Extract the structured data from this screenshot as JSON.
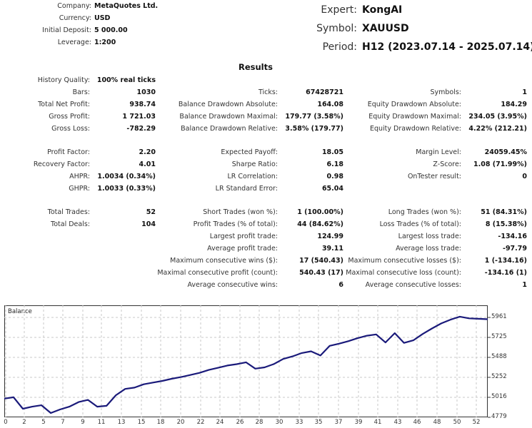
{
  "header_left": {
    "rows": [
      {
        "label": "Company:",
        "value": "MetaQuotes Ltd."
      },
      {
        "label": "Currency:",
        "value": "USD"
      },
      {
        "label": "Initial Deposit:",
        "value": "5 000.00"
      },
      {
        "label": "Leverage:",
        "value": "1:200"
      }
    ]
  },
  "header_right": {
    "rows": [
      {
        "label": "Expert:",
        "value": "KongAI"
      },
      {
        "label": "Symbol:",
        "value": "XAUUSD"
      },
      {
        "label": "Period:",
        "value": "H12 (2023.07.14 - 2025.07.14)"
      }
    ]
  },
  "results": {
    "title": "Results",
    "col1": [
      {
        "label": "History Quality:",
        "value": "100% real ticks"
      },
      {
        "label": "Bars:",
        "value": "1030"
      },
      {
        "label": "Total Net Profit:",
        "value": "938.74"
      },
      {
        "label": "Gross Profit:",
        "value": "1 721.03"
      },
      {
        "label": "Gross Loss:",
        "value": "-782.29"
      },
      {
        "label": "Profit Factor:",
        "value": "2.20"
      },
      {
        "label": "Recovery Factor:",
        "value": "4.01"
      },
      {
        "label": "AHPR:",
        "value": "1.0034 (0.34%)"
      },
      {
        "label": "GHPR:",
        "value": "1.0033 (0.33%)"
      },
      {
        "label": "Total Trades:",
        "value": "52"
      },
      {
        "label": "Total Deals:",
        "value": "104"
      }
    ],
    "col2": [
      {
        "label": "Ticks:",
        "value": "67428721"
      },
      {
        "label": "Balance Drawdown Absolute:",
        "value": "164.08"
      },
      {
        "label": "Balance Drawdown Maximal:",
        "value": "179.77 (3.58%)"
      },
      {
        "label": "Balance Drawdown Relative:",
        "value": "3.58% (179.77)"
      },
      {
        "label": "Expected Payoff:",
        "value": "18.05"
      },
      {
        "label": "Sharpe Ratio:",
        "value": "6.18"
      },
      {
        "label": "LR Correlation:",
        "value": "0.98"
      },
      {
        "label": "LR Standard Error:",
        "value": "65.04"
      },
      {
        "label": "Short Trades (won %):",
        "value": "1 (100.00%)"
      },
      {
        "label": "Profit Trades (% of total):",
        "value": "44 (84.62%)"
      },
      {
        "label": "Largest profit trade:",
        "value": "124.99"
      },
      {
        "label": "Average profit trade:",
        "value": "39.11"
      },
      {
        "label": "Maximum consecutive wins ($):",
        "value": "17 (540.43)"
      },
      {
        "label": "Maximal consecutive profit (count):",
        "value": "540.43 (17)"
      },
      {
        "label": "Average consecutive wins:",
        "value": "6"
      }
    ],
    "col3": [
      {
        "label": "Symbols:",
        "value": "1"
      },
      {
        "label": "Equity Drawdown Absolute:",
        "value": "184.29"
      },
      {
        "label": "Equity Drawdown Maximal:",
        "value": "234.05 (3.95%)"
      },
      {
        "label": "Equity Drawdown Relative:",
        "value": "4.22% (212.21)"
      },
      {
        "label": "Margin Level:",
        "value": "24059.45%"
      },
      {
        "label": "Z-Score:",
        "value": "1.08 (71.99%)"
      },
      {
        "label": "OnTester result:",
        "value": "0"
      },
      {
        "label": "Long Trades (won %):",
        "value": "51 (84.31%)"
      },
      {
        "label": "Loss Trades (% of total):",
        "value": "8 (15.38%)"
      },
      {
        "label": "Largest loss trade:",
        "value": "-134.16"
      },
      {
        "label": "Average loss trade:",
        "value": "-97.79"
      },
      {
        "label": "Maximum consecutive losses ($):",
        "value": "1 (-134.16)"
      },
      {
        "label": "Maximal consecutive loss (count):",
        "value": "-134.16 (1)"
      },
      {
        "label": "Average consecutive losses:",
        "value": "1"
      }
    ]
  },
  "chart_data": {
    "type": "line",
    "title": "Balance",
    "xlabel": "",
    "ylabel": "",
    "x_tick_labels": [
      "0",
      "2",
      "5",
      "7",
      "9",
      "11",
      "13",
      "15",
      "18",
      "20",
      "22",
      "24",
      "26",
      "28",
      "30",
      "33",
      "35",
      "37",
      "39",
      "41",
      "43",
      "46",
      "48",
      "50",
      "52"
    ],
    "y_tick_labels": [
      "5961",
      "5725",
      "5488",
      "5252",
      "5016",
      "4779"
    ],
    "ylim": [
      4779,
      5961
    ],
    "xlim": [
      0,
      52
    ],
    "grid": true,
    "legend": "none",
    "color": "#1a1a7a",
    "series": [
      {
        "name": "Balance",
        "x": [
          0,
          1,
          2,
          3,
          4,
          5,
          6,
          7,
          8,
          9,
          10,
          11,
          12,
          13,
          14,
          15,
          16,
          17,
          18,
          19,
          20,
          21,
          22,
          23,
          24,
          25,
          26,
          27,
          28,
          29,
          30,
          31,
          32,
          33,
          34,
          35,
          36,
          37,
          38,
          39,
          40,
          41,
          42,
          43,
          44,
          45,
          46,
          47,
          48,
          49,
          50,
          51,
          52
        ],
        "values": [
          5000,
          5016,
          4880,
          4905,
          4922,
          4830,
          4872,
          4905,
          4960,
          4985,
          4905,
          4915,
          5040,
          5115,
          5130,
          5170,
          5190,
          5210,
          5235,
          5255,
          5280,
          5305,
          5340,
          5365,
          5392,
          5408,
          5430,
          5355,
          5370,
          5410,
          5470,
          5500,
          5540,
          5560,
          5510,
          5625,
          5650,
          5680,
          5715,
          5745,
          5760,
          5665,
          5775,
          5660,
          5690,
          5765,
          5830,
          5890,
          5935,
          5970,
          5950,
          5945,
          5940
        ]
      }
    ]
  }
}
